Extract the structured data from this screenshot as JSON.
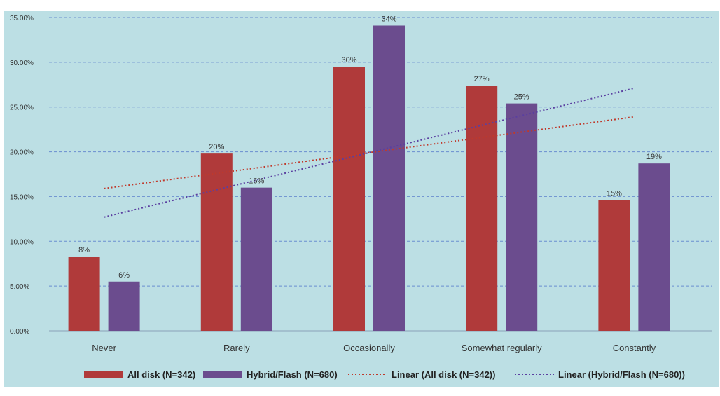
{
  "chart_data": {
    "type": "bar",
    "categories": [
      "Never",
      "Rarely",
      "Occasionally",
      "Somewhat regularly",
      "Constantly"
    ],
    "series": [
      {
        "name": "All disk (N=342)",
        "values": [
          8.3,
          19.8,
          29.5,
          27.4,
          14.6
        ],
        "labels": [
          "8%",
          "20%",
          "30%",
          "27%",
          "15%"
        ],
        "color": "#b03a3a"
      },
      {
        "name": "Hybrid/Flash (N=680)",
        "values": [
          5.5,
          16.0,
          34.1,
          25.4,
          18.7
        ],
        "labels": [
          "6%",
          "16%",
          "34%",
          "25%",
          "19%"
        ],
        "color": "#6b4c8e"
      }
    ],
    "trendlines": [
      {
        "name": "Linear (All disk (N=342))",
        "start": 15.9,
        "end": 23.9,
        "color": "#c0392b"
      },
      {
        "name": "Linear (Hybrid/Flash (N=680))",
        "start": 12.7,
        "end": 27.1,
        "color": "#5a3fa0"
      }
    ],
    "y_ticks": [
      "0.00%",
      "5.00%",
      "10.00%",
      "15.00%",
      "20.00%",
      "25.00%",
      "30.00%",
      "35.00%"
    ],
    "ylim": [
      0,
      35
    ],
    "grid": true,
    "legend_position": "bottom",
    "background": "#bcdfe4",
    "gridline_color": "#6a8fd0"
  }
}
